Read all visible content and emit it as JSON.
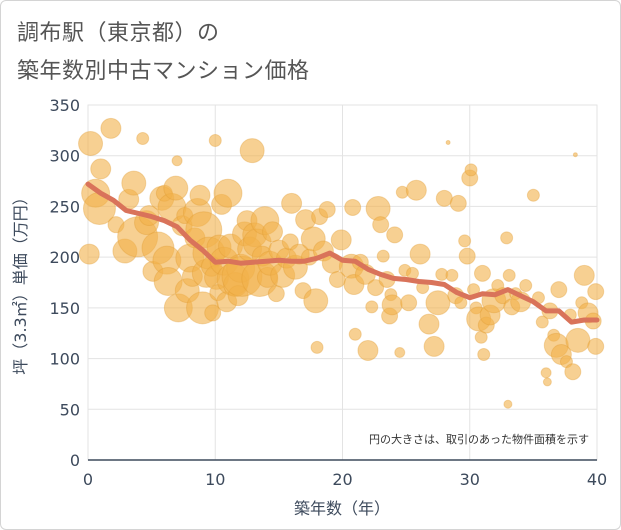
{
  "title_line1": "調布駅（東京都）の",
  "title_line2": "築年数別中古マンション価格",
  "chart_data": {
    "type": "scatter",
    "xlabel": "築年数（年）",
    "ylabel": "坪（3.3㎡）単価（万円）",
    "xlim": [
      0,
      40
    ],
    "ylim": [
      0,
      350
    ],
    "x_ticks": [
      "0",
      "10",
      "20",
      "30",
      "40"
    ],
    "y_ticks": [
      "0",
      "50",
      "100",
      "150",
      "200",
      "250",
      "300",
      "350"
    ],
    "grid": true,
    "annotation": "円の大きさは、取引のあった物件面積を示す",
    "bubble_color": "#f2b04a",
    "line_color": "#d9735a",
    "trend_line": {
      "x": [
        0,
        1,
        2,
        3,
        4,
        5,
        6,
        7,
        8,
        9,
        10,
        11,
        12,
        13,
        14,
        15,
        16,
        17,
        18,
        19,
        20,
        21,
        22,
        23,
        24,
        25,
        26,
        27,
        28,
        29,
        30,
        31,
        32,
        33,
        34,
        35,
        36,
        37,
        38,
        39,
        40
      ],
      "y": [
        272,
        263,
        256,
        246,
        243,
        240,
        236,
        230,
        217,
        207,
        195,
        196,
        194,
        195,
        196,
        197,
        196,
        196,
        199,
        204,
        197,
        196,
        188,
        183,
        179,
        178,
        176,
        175,
        173,
        165,
        160,
        164,
        163,
        168,
        162,
        156,
        147,
        147,
        136,
        138,
        138
      ]
    },
    "points": [
      {
        "x": 0.2,
        "y": 312,
        "s": 12
      },
      {
        "x": 0.1,
        "y": 203,
        "s": 10
      },
      {
        "x": 0.6,
        "y": 263,
        "s": 14
      },
      {
        "x": 0.9,
        "y": 248,
        "s": 16
      },
      {
        "x": 1.0,
        "y": 287,
        "s": 10
      },
      {
        "x": 1.8,
        "y": 327,
        "s": 10
      },
      {
        "x": 2.2,
        "y": 232,
        "s": 8
      },
      {
        "x": 2.9,
        "y": 206,
        "s": 12
      },
      {
        "x": 3.2,
        "y": 257,
        "s": 10
      },
      {
        "x": 3.6,
        "y": 273,
        "s": 12
      },
      {
        "x": 3.9,
        "y": 220,
        "s": 20
      },
      {
        "x": 4.3,
        "y": 317,
        "s": 6
      },
      {
        "x": 4.6,
        "y": 234,
        "s": 12
      },
      {
        "x": 4.8,
        "y": 241,
        "s": 10
      },
      {
        "x": 5.1,
        "y": 186,
        "s": 10
      },
      {
        "x": 5.5,
        "y": 209,
        "s": 16
      },
      {
        "x": 5.8,
        "y": 258,
        "s": 12
      },
      {
        "x": 6.0,
        "y": 263,
        "s": 8
      },
      {
        "x": 6.2,
        "y": 197,
        "s": 14
      },
      {
        "x": 6.3,
        "y": 176,
        "s": 14
      },
      {
        "x": 6.6,
        "y": 249,
        "s": 14
      },
      {
        "x": 6.9,
        "y": 268,
        "s": 12
      },
      {
        "x": 7.0,
        "y": 295,
        "s": 5
      },
      {
        "x": 7.1,
        "y": 150,
        "s": 14
      },
      {
        "x": 7.4,
        "y": 231,
        "s": 10
      },
      {
        "x": 7.6,
        "y": 241,
        "s": 8
      },
      {
        "x": 7.8,
        "y": 167,
        "s": 12
      },
      {
        "x": 8.0,
        "y": 199,
        "s": 14
      },
      {
        "x": 8.2,
        "y": 181,
        "s": 10
      },
      {
        "x": 8.4,
        "y": 219,
        "s": 10
      },
      {
        "x": 8.6,
        "y": 244,
        "s": 14
      },
      {
        "x": 8.8,
        "y": 261,
        "s": 10
      },
      {
        "x": 9.0,
        "y": 150,
        "s": 16
      },
      {
        "x": 9.1,
        "y": 227,
        "s": 18
      },
      {
        "x": 9.3,
        "y": 184,
        "s": 14
      },
      {
        "x": 9.5,
        "y": 204,
        "s": 16
      },
      {
        "x": 9.7,
        "y": 191,
        "s": 10
      },
      {
        "x": 9.8,
        "y": 145,
        "s": 8
      },
      {
        "x": 10.0,
        "y": 315,
        "s": 6
      },
      {
        "x": 10.1,
        "y": 180,
        "s": 12
      },
      {
        "x": 10.2,
        "y": 165,
        "s": 8
      },
      {
        "x": 10.3,
        "y": 210,
        "s": 12
      },
      {
        "x": 10.5,
        "y": 252,
        "s": 10
      },
      {
        "x": 10.7,
        "y": 196,
        "s": 14
      },
      {
        "x": 10.9,
        "y": 156,
        "s": 10
      },
      {
        "x": 11.0,
        "y": 263,
        "s": 14
      },
      {
        "x": 11.2,
        "y": 211,
        "s": 12
      },
      {
        "x": 11.4,
        "y": 178,
        "s": 16
      },
      {
        "x": 11.6,
        "y": 173,
        "s": 12
      },
      {
        "x": 11.8,
        "y": 162,
        "s": 10
      },
      {
        "x": 12.0,
        "y": 189,
        "s": 14
      },
      {
        "x": 12.1,
        "y": 181,
        "s": 20
      },
      {
        "x": 12.3,
        "y": 223,
        "s": 12
      },
      {
        "x": 12.5,
        "y": 236,
        "s": 10
      },
      {
        "x": 12.7,
        "y": 208,
        "s": 12
      },
      {
        "x": 12.9,
        "y": 305,
        "s": 12
      },
      {
        "x": 13.1,
        "y": 222,
        "s": 12
      },
      {
        "x": 13.3,
        "y": 214,
        "s": 14
      },
      {
        "x": 13.5,
        "y": 179,
        "s": 18
      },
      {
        "x": 13.7,
        "y": 201,
        "s": 10
      },
      {
        "x": 13.9,
        "y": 236,
        "s": 14
      },
      {
        "x": 14.1,
        "y": 180,
        "s": 10
      },
      {
        "x": 14.3,
        "y": 194,
        "s": 12
      },
      {
        "x": 14.5,
        "y": 225,
        "s": 10
      },
      {
        "x": 14.8,
        "y": 164,
        "s": 8
      },
      {
        "x": 15.0,
        "y": 207,
        "s": 10
      },
      {
        "x": 15.3,
        "y": 182,
        "s": 12
      },
      {
        "x": 15.6,
        "y": 199,
        "s": 10
      },
      {
        "x": 15.9,
        "y": 215,
        "s": 8
      },
      {
        "x": 16.0,
        "y": 253,
        "s": 10
      },
      {
        "x": 16.3,
        "y": 190,
        "s": 12
      },
      {
        "x": 16.6,
        "y": 203,
        "s": 10
      },
      {
        "x": 16.9,
        "y": 167,
        "s": 8
      },
      {
        "x": 17.1,
        "y": 237,
        "s": 10
      },
      {
        "x": 17.4,
        "y": 200,
        "s": 8
      },
      {
        "x": 17.7,
        "y": 218,
        "s": 12
      },
      {
        "x": 17.9,
        "y": 157,
        "s": 12
      },
      {
        "x": 18.0,
        "y": 111,
        "s": 6
      },
      {
        "x": 18.2,
        "y": 240,
        "s": 8
      },
      {
        "x": 18.5,
        "y": 206,
        "s": 10
      },
      {
        "x": 18.8,
        "y": 247,
        "s": 8
      },
      {
        "x": 19.2,
        "y": 194,
        "s": 10
      },
      {
        "x": 19.6,
        "y": 178,
        "s": 8
      },
      {
        "x": 19.9,
        "y": 217,
        "s": 10
      },
      {
        "x": 20.7,
        "y": 191,
        "s": 12
      },
      {
        "x": 20.8,
        "y": 249,
        "s": 8
      },
      {
        "x": 20.9,
        "y": 173,
        "s": 10
      },
      {
        "x": 21.0,
        "y": 124,
        "s": 6
      },
      {
        "x": 21.4,
        "y": 195,
        "s": 8
      },
      {
        "x": 21.8,
        "y": 183,
        "s": 10
      },
      {
        "x": 22.0,
        "y": 108,
        "s": 10
      },
      {
        "x": 22.3,
        "y": 151,
        "s": 6
      },
      {
        "x": 22.6,
        "y": 170,
        "s": 8
      },
      {
        "x": 22.8,
        "y": 248,
        "s": 12
      },
      {
        "x": 23.0,
        "y": 232,
        "s": 8
      },
      {
        "x": 23.2,
        "y": 201,
        "s": 6
      },
      {
        "x": 23.5,
        "y": 178,
        "s": 8
      },
      {
        "x": 23.7,
        "y": 142,
        "s": 8
      },
      {
        "x": 23.8,
        "y": 163,
        "s": 6
      },
      {
        "x": 23.9,
        "y": 153,
        "s": 10
      },
      {
        "x": 24.1,
        "y": 222,
        "s": 8
      },
      {
        "x": 24.5,
        "y": 106,
        "s": 5
      },
      {
        "x": 24.7,
        "y": 264,
        "s": 6
      },
      {
        "x": 24.9,
        "y": 187,
        "s": 6
      },
      {
        "x": 25.2,
        "y": 155,
        "s": 8
      },
      {
        "x": 25.5,
        "y": 184,
        "s": 6
      },
      {
        "x": 25.8,
        "y": 266,
        "s": 10
      },
      {
        "x": 26.1,
        "y": 203,
        "s": 10
      },
      {
        "x": 26.3,
        "y": 170,
        "s": 6
      },
      {
        "x": 26.8,
        "y": 134,
        "s": 10
      },
      {
        "x": 27.2,
        "y": 112,
        "s": 10
      },
      {
        "x": 27.5,
        "y": 155,
        "s": 12
      },
      {
        "x": 27.8,
        "y": 183,
        "s": 6
      },
      {
        "x": 28.0,
        "y": 258,
        "s": 8
      },
      {
        "x": 28.3,
        "y": 313,
        "s": 2
      },
      {
        "x": 28.6,
        "y": 182,
        "s": 6
      },
      {
        "x": 28.9,
        "y": 162,
        "s": 8
      },
      {
        "x": 29.1,
        "y": 253,
        "s": 8
      },
      {
        "x": 29.3,
        "y": 155,
        "s": 6
      },
      {
        "x": 29.6,
        "y": 216,
        "s": 6
      },
      {
        "x": 29.8,
        "y": 201,
        "s": 8
      },
      {
        "x": 30.0,
        "y": 278,
        "s": 8
      },
      {
        "x": 30.1,
        "y": 286,
        "s": 6
      },
      {
        "x": 30.3,
        "y": 168,
        "s": 6
      },
      {
        "x": 30.5,
        "y": 150,
        "s": 6
      },
      {
        "x": 30.7,
        "y": 139,
        "s": 12
      },
      {
        "x": 30.9,
        "y": 121,
        "s": 6
      },
      {
        "x": 31.0,
        "y": 184,
        "s": 8
      },
      {
        "x": 31.1,
        "y": 104,
        "s": 6
      },
      {
        "x": 31.3,
        "y": 133,
        "s": 8
      },
      {
        "x": 31.6,
        "y": 143,
        "s": 10
      },
      {
        "x": 31.9,
        "y": 157,
        "s": 12
      },
      {
        "x": 32.2,
        "y": 172,
        "s": 6
      },
      {
        "x": 32.6,
        "y": 162,
        "s": 8
      },
      {
        "x": 32.9,
        "y": 219,
        "s": 6
      },
      {
        "x": 33.0,
        "y": 55,
        "s": 4
      },
      {
        "x": 33.1,
        "y": 182,
        "s": 6
      },
      {
        "x": 33.3,
        "y": 151,
        "s": 8
      },
      {
        "x": 33.6,
        "y": 164,
        "s": 6
      },
      {
        "x": 34.0,
        "y": 156,
        "s": 10
      },
      {
        "x": 34.4,
        "y": 172,
        "s": 6
      },
      {
        "x": 35.0,
        "y": 261,
        "s": 6
      },
      {
        "x": 35.4,
        "y": 160,
        "s": 6
      },
      {
        "x": 35.7,
        "y": 136,
        "s": 6
      },
      {
        "x": 36.0,
        "y": 86,
        "s": 5
      },
      {
        "x": 36.1,
        "y": 77,
        "s": 4
      },
      {
        "x": 36.3,
        "y": 147,
        "s": 8
      },
      {
        "x": 36.6,
        "y": 123,
        "s": 6
      },
      {
        "x": 36.8,
        "y": 113,
        "s": 12
      },
      {
        "x": 37.0,
        "y": 168,
        "s": 8
      },
      {
        "x": 37.2,
        "y": 104,
        "s": 10
      },
      {
        "x": 37.6,
        "y": 97,
        "s": 6
      },
      {
        "x": 37.9,
        "y": 143,
        "s": 6
      },
      {
        "x": 38.1,
        "y": 87,
        "s": 8
      },
      {
        "x": 38.3,
        "y": 301,
        "s": 2
      },
      {
        "x": 38.5,
        "y": 118,
        "s": 12
      },
      {
        "x": 38.8,
        "y": 155,
        "s": 6
      },
      {
        "x": 39.0,
        "y": 182,
        "s": 10
      },
      {
        "x": 39.3,
        "y": 145,
        "s": 10
      },
      {
        "x": 39.7,
        "y": 137,
        "s": 8
      },
      {
        "x": 39.9,
        "y": 112,
        "s": 8
      },
      {
        "x": 39.9,
        "y": 166,
        "s": 8
      }
    ]
  }
}
